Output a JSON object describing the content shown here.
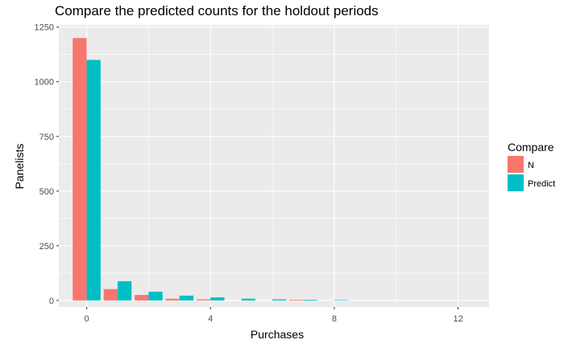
{
  "chart_data": {
    "type": "bar",
    "title": "Compare the predicted counts for the holdout periods",
    "xlabel": "Purchases",
    "ylabel": "Panelists",
    "xlim": [
      -0.9,
      13.0
    ],
    "ylim": [
      -30,
      1260
    ],
    "xticks": [
      0,
      4,
      8,
      12
    ],
    "yticks": [
      0,
      250,
      500,
      750,
      1000,
      1250
    ],
    "grid": true,
    "bar_group_width": 0.9,
    "legend": {
      "title": "Compare",
      "position": "right"
    },
    "colors": {
      "N": "#F8766D",
      "Predict": "#00BFC4",
      "panel": "#EBEBEB",
      "grid": "#FFFFFF"
    },
    "x": [
      0,
      1,
      2,
      3,
      4,
      5,
      6,
      7,
      8
    ],
    "series": [
      {
        "name": "N",
        "values": [
          1200,
          52,
          25,
          8,
          5,
          0,
          0,
          3,
          0
        ]
      },
      {
        "name": "Predict",
        "values": [
          1100,
          88,
          40,
          22,
          14,
          8,
          5,
          3,
          2
        ]
      }
    ]
  }
}
